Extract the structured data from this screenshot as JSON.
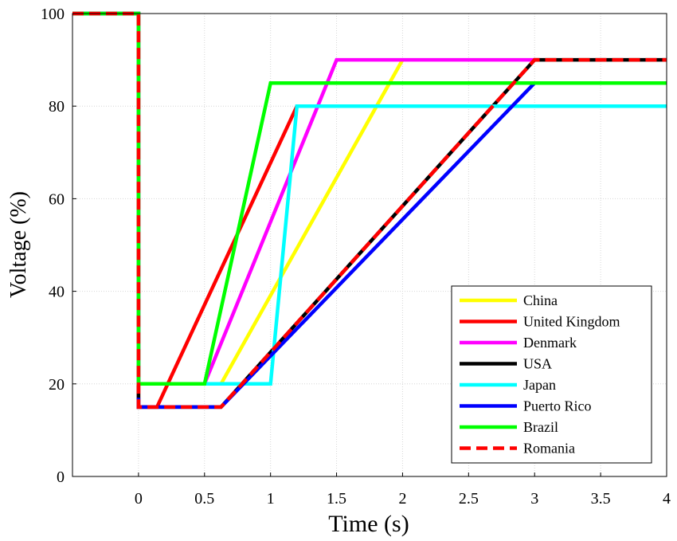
{
  "chart_data": {
    "type": "line",
    "title": "",
    "xlabel": "Time (s)",
    "ylabel": "Voltage (%)",
    "xlim": [
      -0.5,
      4
    ],
    "ylim": [
      0,
      100
    ],
    "xticks": [
      0,
      0.5,
      1,
      1.5,
      2,
      2.5,
      3,
      3.5,
      4
    ],
    "xtick_labels": [
      "0",
      "0.5",
      "1",
      "1.5",
      "2",
      "2.5",
      "3",
      "3.5",
      "4"
    ],
    "yticks": [
      0,
      20,
      40,
      60,
      80,
      100
    ],
    "ytick_labels": [
      "0",
      "20",
      "40",
      "60",
      "80",
      "100"
    ],
    "grid": true,
    "legend_position": "bottom-right",
    "series": [
      {
        "name": "China",
        "color": "#ffff00",
        "dash": "solid",
        "x": [
          -0.5,
          0,
          0,
          0.625,
          2
        ],
        "y": [
          100,
          100,
          20,
          20,
          90
        ]
      },
      {
        "name": "United Kingdom",
        "color": "#ff0000",
        "dash": "solid",
        "x": [
          -0.5,
          0,
          0,
          0.14,
          1.2
        ],
        "y": [
          100,
          100,
          15,
          15,
          80
        ]
      },
      {
        "name": "Denmark",
        "color": "#ff00ff",
        "dash": "solid",
        "x": [
          -0.5,
          0,
          0,
          0.5,
          1.5,
          3
        ],
        "y": [
          100,
          100,
          20,
          20,
          90,
          90
        ]
      },
      {
        "name": "USA",
        "color": "#000000",
        "dash": "solid",
        "x": [
          -0.5,
          0,
          0,
          0.625,
          3,
          4
        ],
        "y": [
          100,
          100,
          15,
          15,
          90,
          90
        ]
      },
      {
        "name": "Japan",
        "color": "#00ffff",
        "dash": "solid",
        "x": [
          -0.5,
          0,
          0,
          1,
          1.2,
          4
        ],
        "y": [
          100,
          100,
          20,
          20,
          80,
          80
        ]
      },
      {
        "name": "Puerto Rico",
        "color": "#0000ff",
        "dash": "solid",
        "x": [
          0,
          0,
          0.625,
          3
        ],
        "y": [
          17,
          15,
          15,
          85
        ]
      },
      {
        "name": "Brazil",
        "color": "#00ff00",
        "dash": "solid",
        "x": [
          -0.5,
          0,
          0,
          0.5,
          1,
          4
        ],
        "y": [
          100,
          100,
          20,
          20,
          85,
          85
        ]
      },
      {
        "name": "Romania",
        "color": "#ff0000",
        "dash": "dashed",
        "x": [
          -0.5,
          0,
          0,
          0.625,
          3,
          4
        ],
        "y": [
          100,
          100,
          15,
          15,
          90,
          90
        ]
      }
    ]
  }
}
